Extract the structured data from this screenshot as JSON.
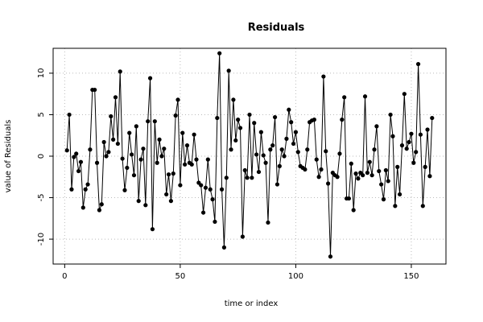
{
  "chart_data": {
    "type": "line",
    "title": "Residuals",
    "xlabel": "time or index",
    "ylabel": "value of Residuals",
    "xlim": [
      -5,
      165
    ],
    "ylim": [
      -13,
      13
    ],
    "x_ticks": [
      0,
      50,
      100,
      150
    ],
    "y_ticks": [
      -10,
      -5,
      0,
      5,
      10
    ],
    "grid": true,
    "markers": "filled-circle",
    "series": [
      {
        "x": [
          1,
          2,
          3,
          4,
          5,
          6,
          7,
          8,
          9,
          10,
          11,
          12,
          13,
          14,
          15,
          16,
          17,
          18,
          19,
          20,
          21,
          22,
          23,
          24,
          25,
          26,
          27,
          28,
          29,
          30,
          31,
          32,
          33,
          34,
          35,
          36,
          37,
          38,
          39,
          40,
          41,
          42,
          43,
          44,
          45,
          46,
          47,
          48,
          49,
          50,
          51,
          52,
          53,
          54,
          55,
          56,
          57,
          58,
          59,
          60,
          61,
          62,
          63,
          64,
          65,
          66,
          67,
          68,
          69,
          70,
          71,
          72,
          73,
          74,
          75,
          76,
          77,
          78,
          79,
          80,
          81,
          82,
          83,
          84,
          85,
          86,
          87,
          88,
          89,
          90,
          91,
          92,
          93,
          94,
          95,
          96,
          97,
          98,
          99,
          100,
          101,
          102,
          103,
          104,
          105,
          106,
          107,
          108,
          109,
          110,
          111,
          112,
          113,
          114,
          115,
          116,
          117,
          118,
          119,
          120,
          121,
          122,
          123,
          124,
          125,
          126,
          127,
          128,
          129,
          130,
          131,
          132,
          133,
          134,
          135,
          136,
          137,
          138,
          139,
          140,
          141,
          142,
          143,
          144,
          145,
          146,
          147,
          148,
          149,
          150,
          151,
          152,
          153,
          154,
          155,
          156,
          157,
          158,
          159
        ],
        "y": [
          0.7,
          5.0,
          -4.0,
          -0.1,
          0.3,
          -1.8,
          -0.7,
          -6.2,
          -4.0,
          -3.4,
          0.8,
          8.0,
          8.0,
          -0.8,
          -6.5,
          -5.8,
          1.7,
          0.0,
          0.5,
          4.8,
          2.0,
          7.1,
          1.5,
          10.2,
          -0.3,
          -4.1,
          -1.4,
          2.8,
          0.2,
          -2.3,
          3.6,
          -5.4,
          -0.4,
          0.9,
          -5.9,
          4.2,
          9.4,
          -8.8,
          4.2,
          -0.8,
          2.0,
          0.0,
          0.9,
          -4.6,
          -2.2,
          -5.4,
          -2.1,
          4.9,
          6.8,
          -3.5,
          2.8,
          -1.0,
          1.3,
          -0.8,
          -1.0,
          2.6,
          -0.4,
          -3.2,
          -3.5,
          -6.8,
          -3.8,
          -0.4,
          -4.0,
          -5.2,
          -7.9,
          4.6,
          12.4,
          -4.0,
          -11.0,
          -2.6,
          10.3,
          0.8,
          6.8,
          1.9,
          4.4,
          3.4,
          -9.7,
          -1.7,
          -2.6,
          5.0,
          -2.6,
          4.0,
          0.2,
          -1.9,
          2.9,
          0.1,
          -0.8,
          -8.0,
          0.8,
          1.3,
          4.7,
          -3.4,
          -1.2,
          0.8,
          0.0,
          2.1,
          5.6,
          4.1,
          1.5,
          2.9,
          0.5,
          -1.2,
          -1.4,
          -1.6,
          0.8,
          4.1,
          4.3,
          4.4,
          -0.4,
          -2.5,
          -1.6,
          9.6,
          0.6,
          -3.3,
          -12.1,
          -2.0,
          -2.3,
          -2.5,
          0.3,
          4.4,
          7.1,
          -5.1,
          -5.1,
          -0.9,
          -6.5,
          -2.1,
          -2.7,
          -2.0,
          -2.3,
          7.2,
          -2.0,
          -0.7,
          -2.3,
          0.8,
          3.6,
          -1.8,
          -3.4,
          -5.2,
          -1.7,
          -3.0,
          5.0,
          2.4,
          -6.0,
          -1.3,
          -4.6,
          1.3,
          7.5,
          0.9,
          1.7,
          2.7,
          -0.8,
          0.5,
          11.1,
          2.6,
          -6.0,
          -1.3,
          3.2,
          -2.4,
          4.6
        ]
      }
    ]
  },
  "colors": {
    "line": "#000000",
    "marker": "#000000",
    "axis": "#000000",
    "grid": "#bbbbbb",
    "background": "#ffffff"
  }
}
